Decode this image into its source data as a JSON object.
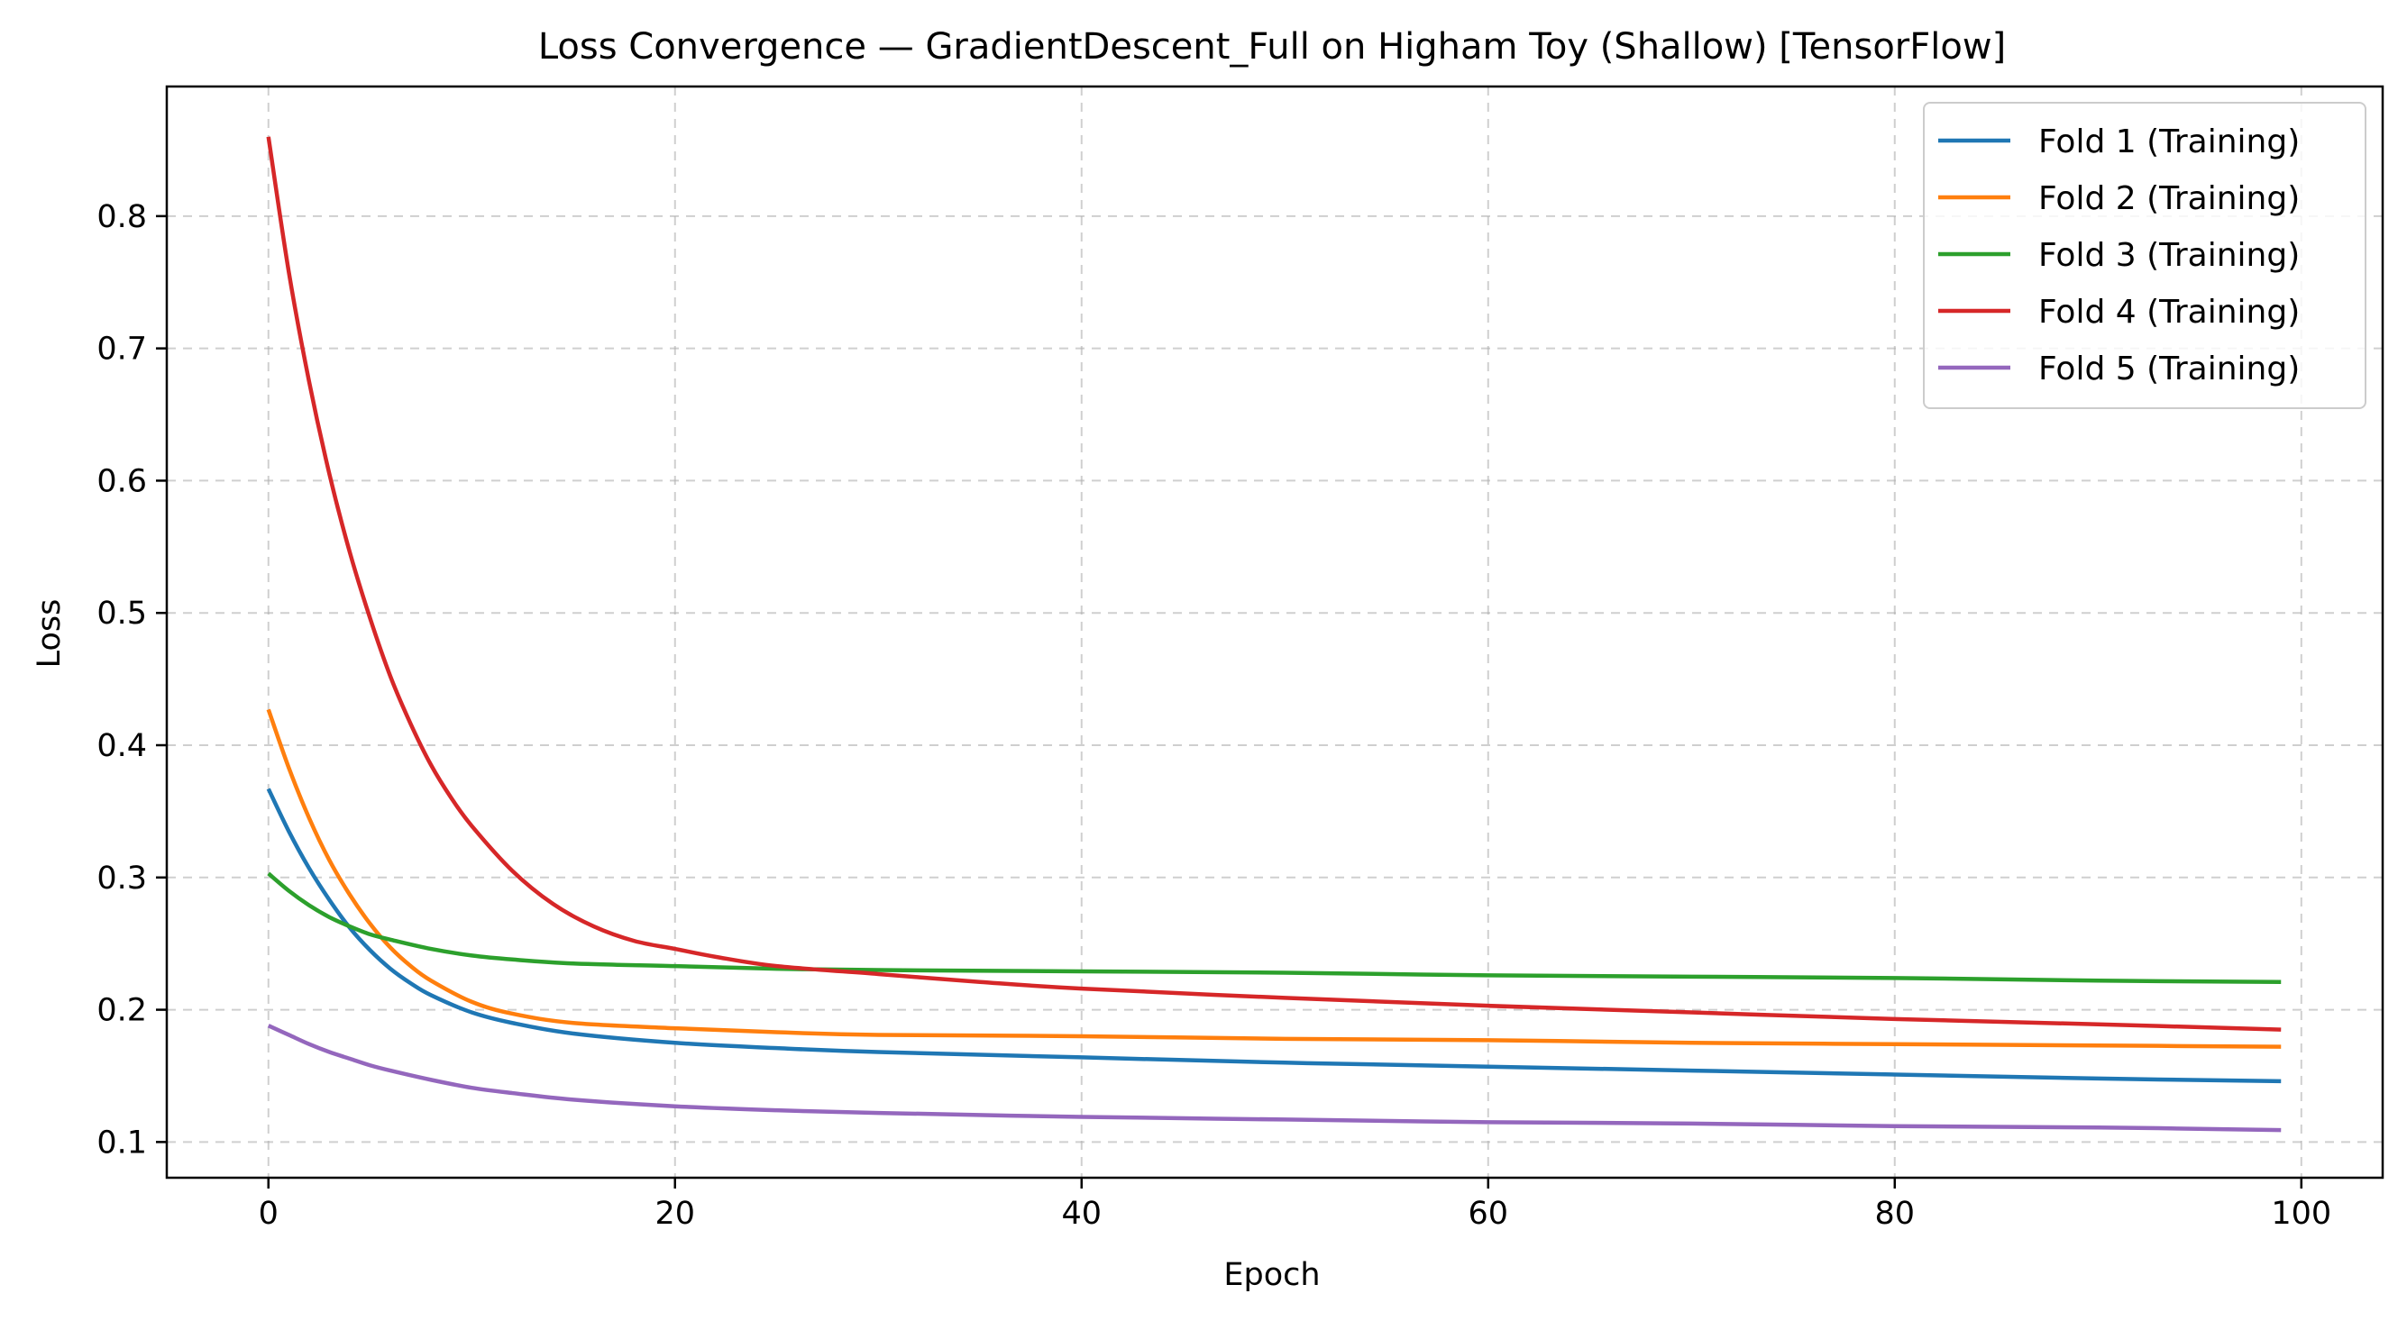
{
  "chart_data": {
    "type": "line",
    "title": "Loss Convergence — GradientDescent_Full on Higham Toy (Shallow) [TensorFlow]",
    "xlabel": "Epoch",
    "ylabel": "Loss",
    "xlim": [
      -5,
      104
    ],
    "ylim": [
      0.073,
      0.898
    ],
    "xticks": [
      0,
      20,
      40,
      60,
      80,
      100
    ],
    "yticks": [
      0.1,
      0.2,
      0.3,
      0.4,
      0.5,
      0.6,
      0.7,
      0.8
    ],
    "xtick_labels": [
      "0",
      "20",
      "40",
      "60",
      "80",
      "100"
    ],
    "ytick_labels": [
      "0.1",
      "0.2",
      "0.3",
      "0.4",
      "0.5",
      "0.6",
      "0.7",
      "0.8"
    ],
    "grid": true,
    "legend_position": "top-right",
    "series": [
      {
        "name": "Fold 1 (Training)",
        "color": "#1f77b4",
        "x": [
          0,
          1,
          2,
          3,
          4,
          5,
          6,
          7,
          8,
          10,
          12,
          15,
          20,
          25,
          30,
          40,
          50,
          60,
          70,
          80,
          90,
          99
        ],
        "y": [
          0.367,
          0.335,
          0.307,
          0.283,
          0.262,
          0.245,
          0.231,
          0.22,
          0.211,
          0.198,
          0.19,
          0.182,
          0.175,
          0.171,
          0.168,
          0.164,
          0.16,
          0.157,
          0.154,
          0.151,
          0.148,
          0.146
        ]
      },
      {
        "name": "Fold 2 (Training)",
        "color": "#ff7f0e",
        "x": [
          0,
          1,
          2,
          3,
          4,
          5,
          6,
          7,
          8,
          10,
          12,
          15,
          20,
          25,
          30,
          40,
          50,
          60,
          70,
          80,
          90,
          99
        ],
        "y": [
          0.427,
          0.383,
          0.345,
          0.313,
          0.287,
          0.265,
          0.247,
          0.233,
          0.222,
          0.206,
          0.197,
          0.19,
          0.186,
          0.183,
          0.181,
          0.18,
          0.178,
          0.177,
          0.175,
          0.174,
          0.173,
          0.172
        ]
      },
      {
        "name": "Fold 3 (Training)",
        "color": "#2ca02c",
        "x": [
          0,
          1,
          2,
          3,
          4,
          5,
          6,
          8,
          10,
          12,
          15,
          20,
          25,
          30,
          40,
          50,
          60,
          70,
          80,
          90,
          99
        ],
        "y": [
          0.303,
          0.29,
          0.279,
          0.27,
          0.263,
          0.257,
          0.253,
          0.246,
          0.241,
          0.238,
          0.235,
          0.233,
          0.231,
          0.23,
          0.229,
          0.228,
          0.226,
          0.225,
          0.224,
          0.222,
          0.221
        ]
      },
      {
        "name": "Fold 4 (Training)",
        "color": "#d62728",
        "x": [
          0,
          1,
          2,
          3,
          4,
          5,
          6,
          7,
          8,
          9,
          10,
          12,
          14,
          16,
          18,
          20,
          22,
          25,
          30,
          35,
          40,
          50,
          60,
          70,
          80,
          90,
          99
        ],
        "y": [
          0.86,
          0.758,
          0.675,
          0.605,
          0.546,
          0.496,
          0.452,
          0.416,
          0.385,
          0.36,
          0.339,
          0.305,
          0.28,
          0.263,
          0.252,
          0.246,
          0.24,
          0.233,
          0.227,
          0.221,
          0.216,
          0.209,
          0.203,
          0.198,
          0.193,
          0.189,
          0.185
        ]
      },
      {
        "name": "Fold 5 (Training)",
        "color": "#9467bd",
        "x": [
          0,
          1,
          2,
          3,
          4,
          5,
          6,
          8,
          10,
          12,
          15,
          20,
          25,
          30,
          40,
          50,
          60,
          70,
          80,
          90,
          99
        ],
        "y": [
          0.188,
          0.181,
          0.174,
          0.168,
          0.163,
          0.158,
          0.154,
          0.147,
          0.141,
          0.137,
          0.132,
          0.127,
          0.124,
          0.122,
          0.119,
          0.117,
          0.115,
          0.114,
          0.112,
          0.111,
          0.109
        ]
      }
    ]
  }
}
